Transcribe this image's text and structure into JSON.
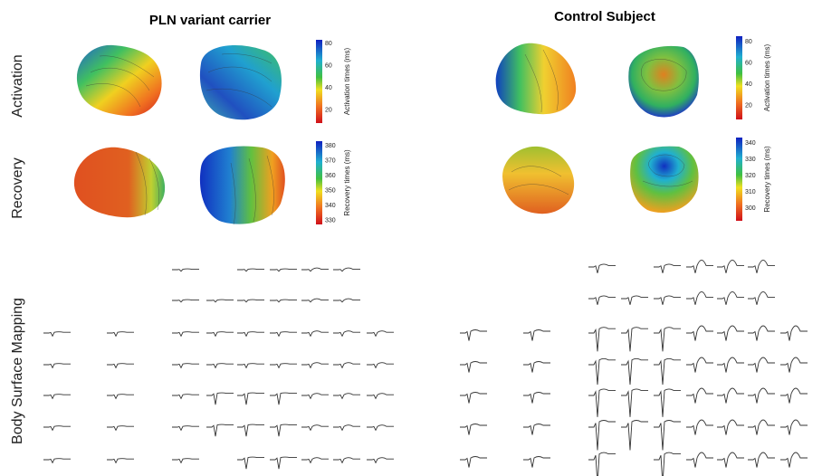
{
  "rows": {
    "activation": "Activation",
    "recovery": "Recovery",
    "bsm": "Body Surface Mapping"
  },
  "pln": {
    "title": "PLN variant carrier",
    "activation_scale": {
      "label": "Activation times (ms)",
      "ticks": [
        80,
        60,
        40,
        20
      ]
    },
    "recovery_scale": {
      "label": "Recovery times (ms)",
      "ticks": [
        380,
        370,
        360,
        350,
        340,
        330
      ]
    }
  },
  "control": {
    "title": "Control Subject",
    "activation_scale": {
      "label": "Activation times (ms)",
      "ticks": [
        80,
        60,
        40,
        20
      ]
    },
    "recovery_scale": {
      "label": "Recovery times (ms)",
      "ticks": [
        340,
        330,
        320,
        310,
        300
      ]
    }
  }
}
